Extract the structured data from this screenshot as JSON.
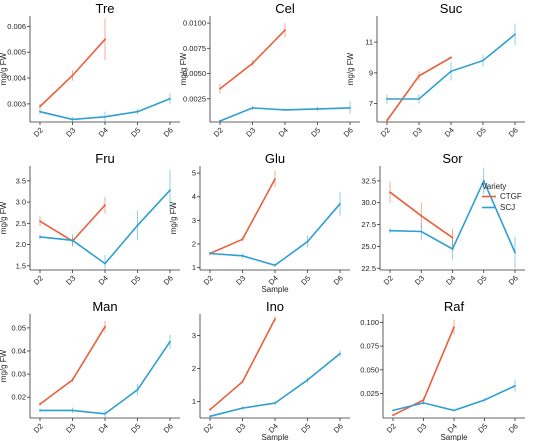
{
  "colors": {
    "CTGF": "#e8603c",
    "SCJ": "#2f9fd0"
  },
  "legend": {
    "title": "Variety",
    "entries": [
      {
        "name": "CTGF",
        "color": "#e8603c"
      },
      {
        "name": "SCJ",
        "color": "#2f9fd0"
      }
    ]
  },
  "chart_data": [
    {
      "type": "line",
      "title": "Tre",
      "xlabel": "",
      "ylabel": "mg/g FW",
      "categories": [
        "D2",
        "D3",
        "D4",
        "D5",
        "D6"
      ],
      "ylim": [
        0.0023,
        0.0064
      ],
      "yticks": [
        0.003,
        0.004,
        0.005,
        0.006
      ],
      "ytick_labels": [
        "0.003",
        "0.004",
        "0.005",
        "0.006"
      ],
      "series": [
        {
          "name": "CTGF",
          "x": [
            "D2",
            "D3",
            "D4"
          ],
          "values": [
            0.0029,
            0.0041,
            0.0055
          ],
          "err": [
            0.0001,
            0.0002,
            0.0008
          ]
        },
        {
          "name": "SCJ",
          "x": [
            "D2",
            "D3",
            "D4",
            "D5",
            "D6"
          ],
          "values": [
            0.0027,
            0.0024,
            0.0025,
            0.0027,
            0.0032
          ],
          "err": [
            0.0001,
            0.0001,
            0.0002,
            0.0001,
            0.0002
          ]
        }
      ]
    },
    {
      "type": "line",
      "title": "Cel",
      "xlabel": "",
      "ylabel": "mg/g FW",
      "categories": [
        "D2",
        "D3",
        "D4",
        "D5",
        "D6"
      ],
      "ylim": [
        0.0002,
        0.0107
      ],
      "yticks": [
        0.0025,
        0.005,
        0.0075,
        0.01
      ],
      "ytick_labels": [
        "0.0025",
        "0.0050",
        "0.0075",
        "0.0100"
      ],
      "series": [
        {
          "name": "CTGF",
          "x": [
            "D2",
            "D3",
            "D4"
          ],
          "values": [
            0.0035,
            0.006,
            0.0093
          ],
          "err": [
            0.0005,
            0.0003,
            0.0007
          ]
        },
        {
          "name": "SCJ",
          "x": [
            "D2",
            "D3",
            "D4",
            "D5",
            "D6"
          ],
          "values": [
            0.0003,
            0.0016,
            0.0014,
            0.0015,
            0.0016
          ],
          "err": [
            0.0001,
            0.0002,
            0.0001,
            0.0002,
            0.0006
          ]
        }
      ]
    },
    {
      "type": "line",
      "title": "Suc",
      "xlabel": "",
      "ylabel": "mg/g FW",
      "categories": [
        "D2",
        "D3",
        "D4",
        "D5",
        "D6"
      ],
      "ylim": [
        5.8,
        12.7
      ],
      "yticks": [
        7,
        9,
        11
      ],
      "ytick_labels": [
        "7",
        "9",
        "11"
      ],
      "series": [
        {
          "name": "CTGF",
          "x": [
            "D2",
            "D3",
            "D4"
          ],
          "values": [
            5.9,
            8.8,
            10.0
          ],
          "err": [
            0.1,
            0.3,
            0.1
          ]
        },
        {
          "name": "SCJ",
          "x": [
            "D2",
            "D3",
            "D4",
            "D5",
            "D6"
          ],
          "values": [
            7.3,
            7.3,
            9.1,
            9.8,
            11.5
          ],
          "err": [
            0.3,
            0.3,
            0.6,
            0.4,
            0.7
          ]
        }
      ]
    },
    {
      "type": "line",
      "title": "Fru",
      "xlabel": "",
      "ylabel": "mg/g FW",
      "categories": [
        "D2",
        "D3",
        "D4",
        "D5",
        "D6"
      ],
      "ylim": [
        1.4,
        3.85
      ],
      "yticks": [
        1.5,
        2.0,
        2.5,
        3.0,
        3.5
      ],
      "ytick_labels": [
        "1.5",
        "2.0",
        "2.5",
        "3.0",
        "3.5"
      ],
      "series": [
        {
          "name": "CTGF",
          "x": [
            "D2",
            "D3",
            "D4"
          ],
          "values": [
            2.55,
            2.08,
            2.93
          ],
          "err": [
            0.12,
            0.1,
            0.2
          ]
        },
        {
          "name": "SCJ",
          "x": [
            "D2",
            "D3",
            "D4",
            "D5",
            "D6"
          ],
          "values": [
            2.18,
            2.1,
            1.55,
            2.45,
            3.28
          ],
          "err": [
            0.06,
            0.15,
            0.2,
            0.35,
            0.48
          ]
        }
      ]
    },
    {
      "type": "line",
      "title": "Glu",
      "xlabel": "Sample",
      "ylabel": "mg/g FW",
      "categories": [
        "D2",
        "D3",
        "D4",
        "D5",
        "D6"
      ],
      "ylim": [
        0.9,
        5.3
      ],
      "yticks": [
        1,
        2,
        3,
        4,
        5
      ],
      "ytick_labels": [
        "1",
        "2",
        "3",
        "4",
        "5"
      ],
      "series": [
        {
          "name": "CTGF",
          "x": [
            "D2",
            "D3",
            "D4"
          ],
          "values": [
            1.6,
            2.2,
            4.75
          ],
          "err": [
            0.08,
            0.1,
            0.35
          ]
        },
        {
          "name": "SCJ",
          "x": [
            "D2",
            "D3",
            "D4",
            "D5",
            "D6"
          ],
          "values": [
            1.6,
            1.5,
            1.1,
            2.1,
            3.7
          ],
          "err": [
            0.06,
            0.1,
            0.08,
            0.25,
            0.5
          ]
        }
      ]
    },
    {
      "type": "line",
      "title": "Sor",
      "xlabel": "",
      "ylabel": "",
      "categories": [
        "D2",
        "D3",
        "D4",
        "D5",
        "D6"
      ],
      "ylim": [
        22.3,
        34.2
      ],
      "yticks": [
        22.5,
        25.0,
        27.5,
        30.0,
        32.5
      ],
      "ytick_labels": [
        "22.5",
        "25.0",
        "27.5",
        "30.0",
        "32.5"
      ],
      "series": [
        {
          "name": "CTGF",
          "x": [
            "D2",
            "D3",
            "D4"
          ],
          "values": [
            31.2,
            28.5,
            26.0
          ],
          "err": [
            1.2,
            1.5,
            1.0
          ]
        },
        {
          "name": "SCJ",
          "x": [
            "D2",
            "D3",
            "D4",
            "D5",
            "D6"
          ],
          "values": [
            26.8,
            26.7,
            24.7,
            32.5,
            24.3
          ],
          "err": [
            0.3,
            1.0,
            1.2,
            1.5,
            1.8
          ]
        }
      ]
    },
    {
      "type": "line",
      "title": "Man",
      "xlabel": "",
      "ylabel": "mg/g FW",
      "categories": [
        "D2",
        "D3",
        "D4",
        "D5",
        "D6"
      ],
      "ylim": [
        0.011,
        0.056
      ],
      "yticks": [
        0.02,
        0.03,
        0.04,
        0.05
      ],
      "ytick_labels": [
        "0.02",
        "0.03",
        "0.04",
        "0.05"
      ],
      "series": [
        {
          "name": "CTGF",
          "x": [
            "D2",
            "D3",
            "D4"
          ],
          "values": [
            0.017,
            0.0275,
            0.0505
          ],
          "err": [
            0.0008,
            0.001,
            0.0025
          ]
        },
        {
          "name": "SCJ",
          "x": [
            "D2",
            "D3",
            "D4",
            "D5",
            "D6"
          ],
          "values": [
            0.0143,
            0.0143,
            0.0128,
            0.0232,
            0.044
          ],
          "err": [
            0.0008,
            0.0012,
            0.0015,
            0.0025,
            0.003
          ]
        }
      ]
    },
    {
      "type": "line",
      "title": "Ino",
      "xlabel": "Sample",
      "ylabel": "",
      "categories": [
        "D2",
        "D3",
        "D4",
        "D5",
        "D6"
      ],
      "ylim": [
        0.5,
        3.65
      ],
      "yticks": [
        1,
        2,
        3
      ],
      "ytick_labels": [
        "1",
        "2",
        "3"
      ],
      "series": [
        {
          "name": "CTGF",
          "x": [
            "D2",
            "D3",
            "D4"
          ],
          "values": [
            0.75,
            1.6,
            3.5
          ],
          "err": [
            0.05,
            0.05,
            0.08
          ]
        },
        {
          "name": "SCJ",
          "x": [
            "D2",
            "D3",
            "D4",
            "D5",
            "D6"
          ],
          "values": [
            0.55,
            0.8,
            0.95,
            1.65,
            2.45
          ],
          "err": [
            0.04,
            0.05,
            0.06,
            0.08,
            0.1
          ]
        }
      ]
    },
    {
      "type": "line",
      "title": "Raf",
      "xlabel": "Sample",
      "ylabel": "",
      "categories": [
        "D2",
        "D3",
        "D4",
        "D5",
        "D6"
      ],
      "ylim": [
        -0.001,
        0.109
      ],
      "yticks": [
        0.025,
        0.05,
        0.075,
        0.1
      ],
      "ytick_labels": [
        "0.025",
        "0.050",
        "0.075",
        "0.100"
      ],
      "series": [
        {
          "name": "CTGF",
          "x": [
            "D2",
            "D3",
            "D4"
          ],
          "values": [
            0.002,
            0.018,
            0.095
          ],
          "err": [
            0.001,
            0.003,
            0.008
          ]
        },
        {
          "name": "SCJ",
          "x": [
            "D2",
            "D3",
            "D4",
            "D5",
            "D6"
          ],
          "values": [
            0.007,
            0.015,
            0.007,
            0.018,
            0.033
          ],
          "err": [
            0.001,
            0.002,
            0.001,
            0.002,
            0.006
          ]
        }
      ]
    }
  ]
}
